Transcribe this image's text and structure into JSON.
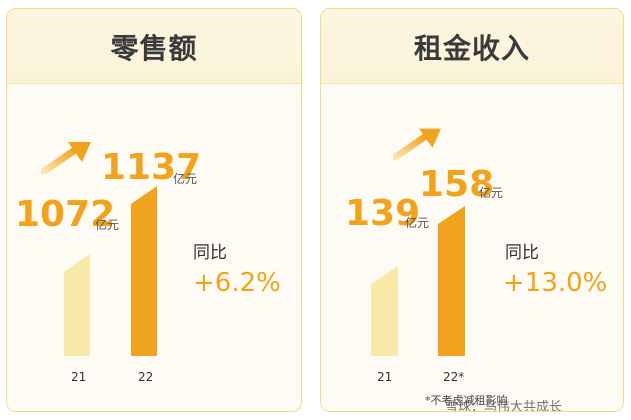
{
  "chart_data": [
    {
      "type": "bar",
      "title": "零售额",
      "categories": [
        "21",
        "22"
      ],
      "values": [
        1072,
        1137
      ],
      "value_labels": [
        "1072",
        "1137"
      ],
      "unit": "亿元",
      "yoy_label": "同比",
      "yoy_value": "+6.2%",
      "colors": {
        "prev": "#f8e9a8",
        "cur": "#f0a31e"
      }
    },
    {
      "type": "bar",
      "title": "租金收入",
      "categories": [
        "21",
        "22*"
      ],
      "values": [
        139,
        158
      ],
      "value_labels": [
        "139",
        "158"
      ],
      "unit": "亿元",
      "yoy_label": "同比",
      "yoy_value": "+13.0%",
      "note": "*不考虑减租影响",
      "colors": {
        "prev": "#f8e9a8",
        "cur": "#f0a31e"
      }
    }
  ],
  "watermark": "雪球：马伟大共成长",
  "colors": {
    "accent": "#f0a31e",
    "light": "#f8e9a8",
    "border": "#f2d98a",
    "header_bg": "#fbf3d9"
  },
  "icons": {
    "arrow": "up-right-arrow-icon"
  }
}
